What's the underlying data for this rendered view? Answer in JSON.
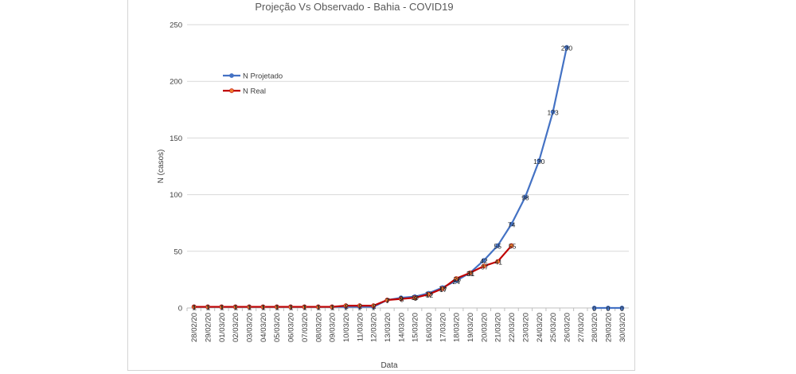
{
  "chart_data": {
    "type": "line",
    "title": "Projeção Vs Observado - Bahia - COVID19",
    "xlabel": "Data",
    "ylabel": "N (casos)",
    "ylim": [
      0,
      250
    ],
    "yticks": [
      0,
      50,
      100,
      150,
      200,
      250
    ],
    "grid": true,
    "legend_position": "top-left",
    "categories": [
      "28/02/20",
      "29/02/20",
      "01/03/20",
      "02/03/20",
      "03/03/20",
      "04/03/20",
      "05/03/20",
      "06/03/20",
      "07/03/20",
      "08/03/20",
      "09/03/20",
      "10/03/20",
      "11/03/20",
      "12/03/20",
      "13/03/20",
      "14/03/20",
      "15/03/20",
      "16/03/20",
      "17/03/20",
      "18/03/20",
      "19/03/20",
      "20/03/20",
      "21/03/20",
      "22/03/20",
      "23/03/20",
      "24/03/20",
      "25/03/20",
      "26/03/20",
      "27/03/20",
      "28/03/20",
      "29/03/20",
      "30/03/20"
    ],
    "series": [
      {
        "name": "N Projetado",
        "color": "#4472c4",
        "values": [
          1,
          1,
          1,
          1,
          1,
          1,
          1,
          1,
          1,
          1,
          1,
          1,
          1,
          1,
          7,
          9,
          10,
          13,
          18,
          24,
          31,
          42,
          55,
          74,
          98,
          130,
          173,
          230,
          null,
          0,
          0,
          0
        ],
        "labels": [
          "1",
          "1",
          "1",
          "1",
          "1",
          "1",
          "1",
          "1",
          "1",
          "1",
          "1",
          "1",
          "1",
          "1",
          "7",
          "9",
          "10",
          "13",
          "18",
          "24",
          "31",
          "42",
          "55",
          "74",
          "98",
          "130",
          "173",
          "230",
          "",
          "0",
          "0",
          "0"
        ]
      },
      {
        "name": "N Real",
        "color": "#c00000",
        "values": [
          1,
          1,
          1,
          1,
          1,
          1,
          1,
          1,
          1,
          1,
          1,
          2,
          2,
          2,
          7,
          8,
          9,
          12,
          17,
          26,
          31,
          37,
          41,
          55,
          null,
          null,
          null,
          null,
          null,
          null,
          null,
          null
        ],
        "labels": [
          "1",
          "1",
          "1",
          "1",
          "1",
          "1",
          "1",
          "1",
          "1",
          "1",
          "1",
          "2",
          "2",
          "2",
          "7",
          "8",
          "9",
          "12",
          "17",
          "26",
          "31",
          "37",
          "41",
          "55",
          "",
          "",
          "",
          "",
          "",
          "",
          "",
          ""
        ]
      }
    ]
  }
}
